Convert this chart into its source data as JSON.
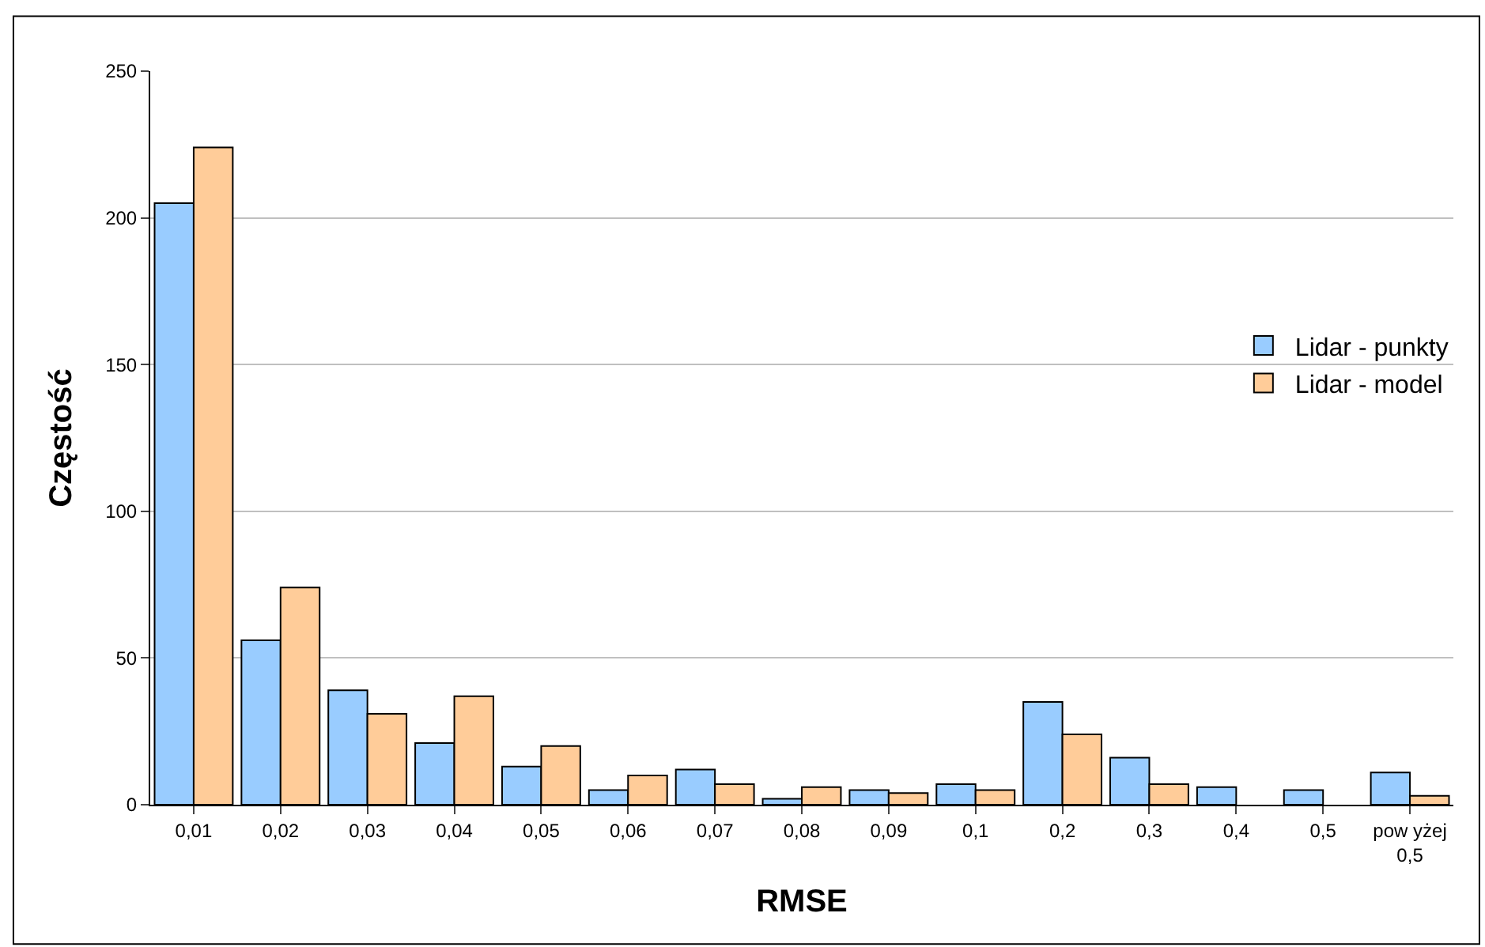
{
  "chart_data": {
    "type": "bar",
    "xlabel": "RMSE",
    "ylabel": "Częstość",
    "categories": [
      "0,01",
      "0,02",
      "0,03",
      "0,04",
      "0,05",
      "0,06",
      "0,07",
      "0,08",
      "0,09",
      "0,1",
      "0,2",
      "0,3",
      "0,4",
      "0,5",
      "pow yżej\n0,5"
    ],
    "series": [
      {
        "name": "Lidar - punkty",
        "color": "#99ccff",
        "values": [
          205,
          56,
          39,
          21,
          13,
          5,
          12,
          2,
          5,
          7,
          35,
          16,
          6,
          5,
          11
        ]
      },
      {
        "name": "Lidar - model",
        "color": "#ffcc99",
        "values": [
          224,
          74,
          31,
          37,
          20,
          10,
          7,
          6,
          4,
          5,
          24,
          7,
          0,
          0,
          3
        ]
      }
    ],
    "ylim": [
      0,
      250
    ],
    "yticks": [
      0,
      50,
      100,
      150,
      200,
      250
    ],
    "grid": "y",
    "legend": "right"
  }
}
